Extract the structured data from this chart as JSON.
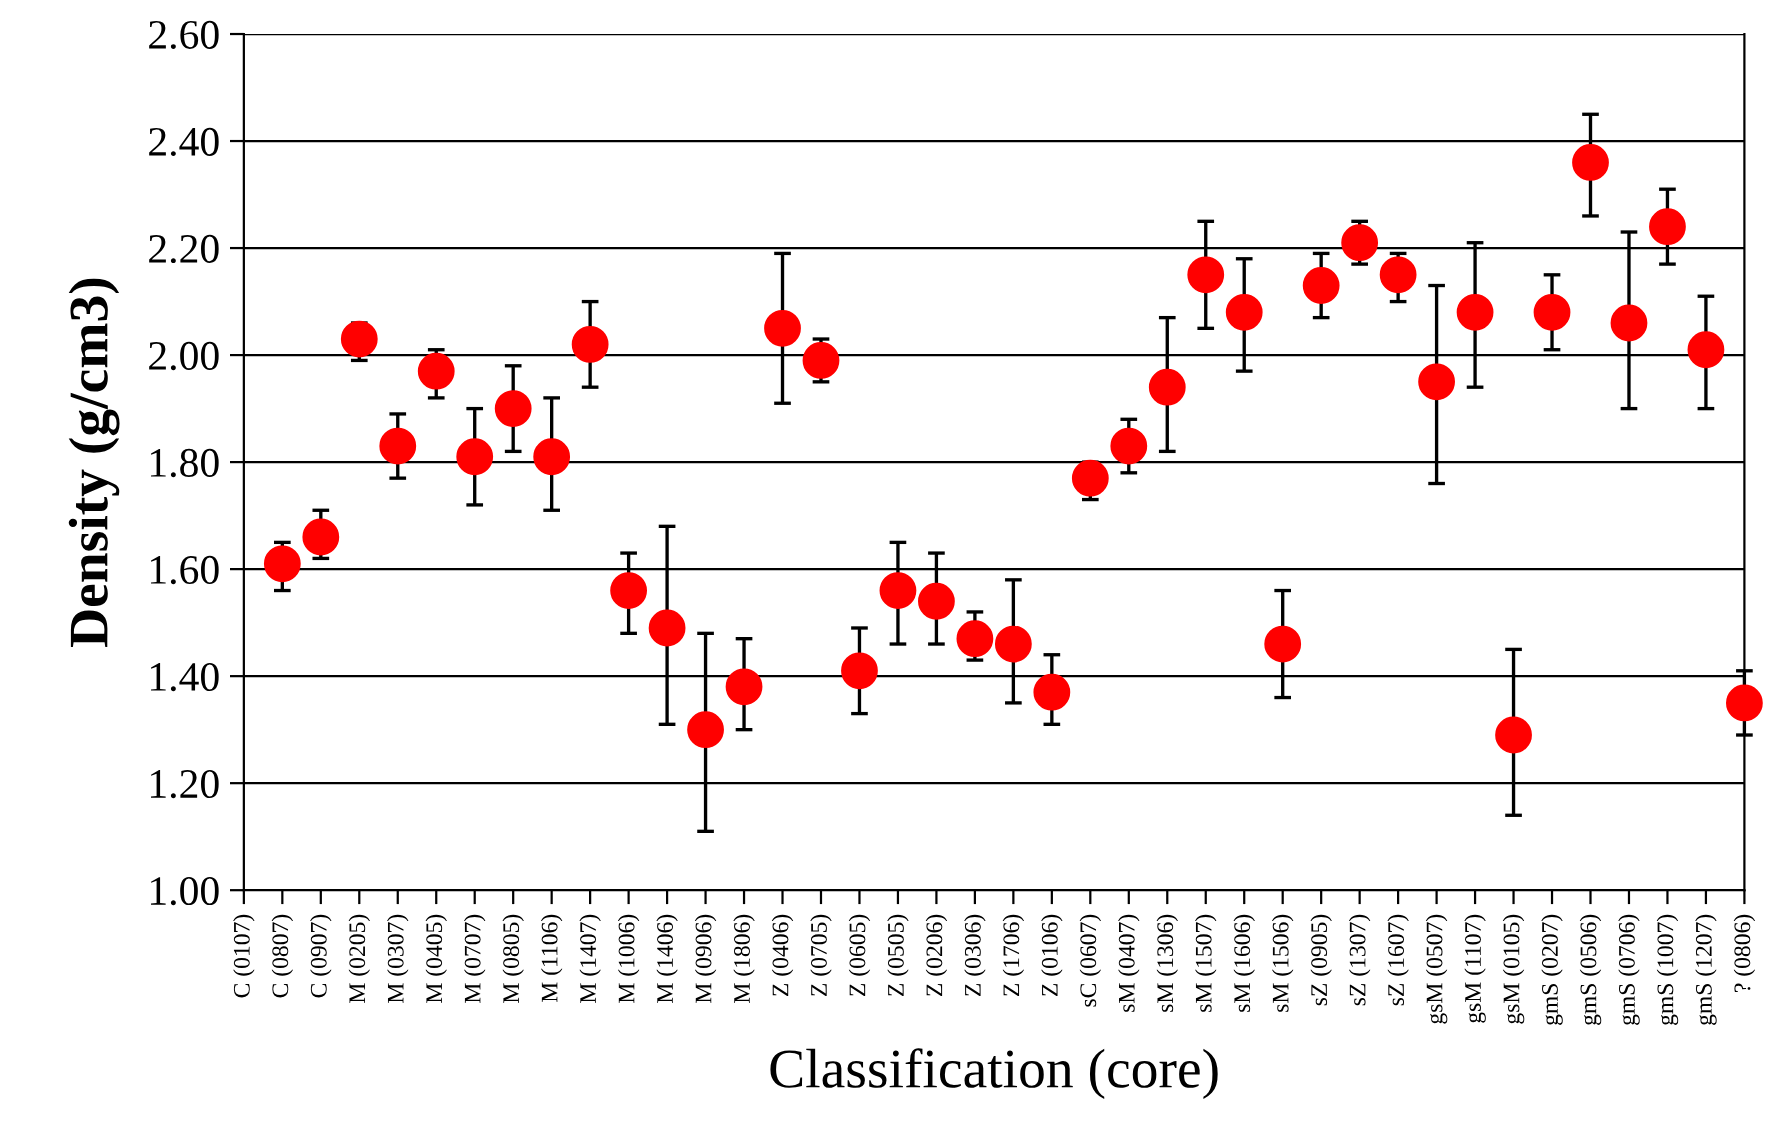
{
  "chart_data": {
    "type": "scatter",
    "xlabel": "Classification (core)",
    "ylabel": "Density (g/cm3)",
    "categories": [
      "C (0107)",
      "C (0807)",
      "C (0907)",
      "M (0205)",
      "M (0307)",
      "M (0405)",
      "M (0707)",
      "M (0805)",
      "M (1106)",
      "M (1407)",
      "M (1006)",
      "M (1406)",
      "M (0906)",
      "M (1806)",
      "Z (0406)",
      "Z (0705)",
      "Z (0605)",
      "Z (0505)",
      "Z (0206)",
      "Z (0306)",
      "Z (1706)",
      "Z (0106)",
      "sC (0607)",
      "sM (0407)",
      "sM (1306)",
      "sM (1507)",
      "sM (1606)",
      "sM (1506)",
      "sZ (0905)",
      "sZ (1307)",
      "sZ (1607)",
      "gsM (0507)",
      "gsM (1107)",
      "gsM (0105)",
      "gmS (0207)",
      "gmS (0506)",
      "gmS (0706)",
      "gmS (1007)",
      "gmS (1207)",
      "? (0806)"
    ],
    "series": [
      {
        "color": "#ff0000",
        "values": [
          null,
          1.61,
          1.66,
          2.03,
          1.83,
          1.97,
          1.81,
          1.9,
          1.81,
          2.02,
          1.56,
          1.49,
          1.3,
          1.38,
          2.05,
          1.99,
          1.41,
          1.56,
          1.54,
          1.47,
          1.46,
          1.37,
          1.77,
          1.83,
          1.94,
          2.15,
          2.08,
          1.46,
          2.13,
          2.21,
          2.15,
          1.95,
          2.08,
          1.29,
          2.08,
          2.36,
          2.06,
          2.24,
          2.01,
          1.35
        ],
        "errors": [
          null,
          [
            1.56,
            1.65
          ],
          [
            1.62,
            1.71
          ],
          [
            1.99,
            2.06
          ],
          [
            1.77,
            1.89
          ],
          [
            1.92,
            2.01
          ],
          [
            1.72,
            1.9
          ],
          [
            1.82,
            1.98
          ],
          [
            1.71,
            1.92
          ],
          [
            1.94,
            2.1
          ],
          [
            1.48,
            1.63
          ],
          [
            1.31,
            1.68
          ],
          [
            1.11,
            1.48
          ],
          [
            1.3,
            1.47
          ],
          [
            1.91,
            2.19
          ],
          [
            1.95,
            2.03
          ],
          [
            1.33,
            1.49
          ],
          [
            1.46,
            1.65
          ],
          [
            1.46,
            1.63
          ],
          [
            1.43,
            1.52
          ],
          [
            1.35,
            1.58
          ],
          [
            1.31,
            1.44
          ],
          [
            1.73,
            1.8
          ],
          [
            1.78,
            1.88
          ],
          [
            1.82,
            2.07
          ],
          [
            2.05,
            2.25
          ],
          [
            1.97,
            2.18
          ],
          [
            1.36,
            1.56
          ],
          [
            2.07,
            2.19
          ],
          [
            2.17,
            2.25
          ],
          [
            2.1,
            2.19
          ],
          [
            1.76,
            2.13
          ],
          [
            1.94,
            2.21
          ],
          [
            1.14,
            1.45
          ],
          [
            2.01,
            2.15
          ],
          [
            2.26,
            2.45
          ],
          [
            1.9,
            2.23
          ],
          [
            2.17,
            2.31
          ],
          [
            1.9,
            2.11
          ],
          [
            1.29,
            1.41
          ]
        ]
      }
    ],
    "ylim": [
      1.0,
      2.6
    ],
    "yticks": [
      {
        "value": 1.0,
        "label": "1.00"
      },
      {
        "value": 1.2,
        "label": "1.20"
      },
      {
        "value": 1.4,
        "label": "1.40"
      },
      {
        "value": 1.6,
        "label": "1.60"
      },
      {
        "value": 1.8,
        "label": "1.80"
      },
      {
        "value": 2.0,
        "label": "2.00"
      },
      {
        "value": 2.2,
        "label": "2.20"
      },
      {
        "value": 2.4,
        "label": "2.40"
      },
      {
        "value": 2.6,
        "label": "2.60"
      }
    ],
    "grid": "y",
    "marker": "circle"
  }
}
